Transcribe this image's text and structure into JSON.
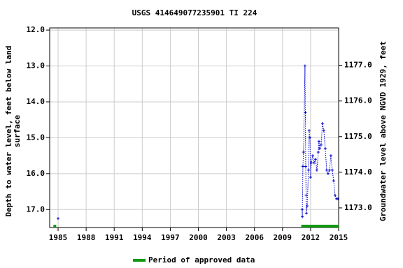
{
  "chart_data": {
    "type": "line",
    "title": "USGS 414649077235901 TI   224",
    "y_label_lines": [
      "Depth to water level, feet below land",
      "surface"
    ],
    "y2_label": "Groundwater level above NGVD 1929, feet",
    "xlim": [
      1984.1,
      2015
    ],
    "xticks": [
      1985,
      1988,
      1991,
      1994,
      1997,
      2000,
      2003,
      2006,
      2009,
      2012,
      2015
    ],
    "ylim": [
      11.94,
      17.5
    ],
    "y_inverted": true,
    "yticks": [
      {
        "value": 12,
        "label": "12.0"
      },
      {
        "value": 13,
        "label": "13.0"
      },
      {
        "value": 14,
        "label": "14.0"
      },
      {
        "value": 15,
        "label": "15.0"
      },
      {
        "value": 16,
        "label": "16.0"
      },
      {
        "value": 17,
        "label": "17.0"
      }
    ],
    "y2lim": [
      1172.45,
      1178.05
    ],
    "y2ticks": [
      {
        "value": 1173,
        "label": "1173.0"
      },
      {
        "value": 1174,
        "label": "1174.0"
      },
      {
        "value": 1175,
        "label": "1175.0"
      },
      {
        "value": 1176,
        "label": "1176.0"
      },
      {
        "value": 1177,
        "label": "1177.0"
      }
    ],
    "grid": true,
    "series": [
      {
        "color": "#0000cc",
        "x": [
          1985.0,
          null,
          2011.1,
          2011.12,
          2011.18,
          2011.25,
          2011.4,
          2011.44,
          2011.48,
          2011.52,
          2011.55,
          2011.63,
          2011.78,
          2011.85,
          2011.93,
          2012.0,
          2012.08,
          2012.23,
          2012.37,
          2012.52,
          2012.67,
          2012.82,
          2012.9,
          2012.97,
          2013.12,
          2013.27,
          2013.42,
          2013.57,
          2013.72,
          2013.87,
          2014.02,
          2014.17,
          2014.32,
          2014.47,
          2014.62,
          2014.77,
          2014.92
        ],
        "values": [
          17.25,
          null,
          17.0,
          17.2,
          15.8,
          15.4,
          13.0,
          14.3,
          15.8,
          16.6,
          17.1,
          16.9,
          15.9,
          14.8,
          15.0,
          16.1,
          15.7,
          15.5,
          15.7,
          15.6,
          15.9,
          15.4,
          15.1,
          15.3,
          15.2,
          14.6,
          14.8,
          15.3,
          15.9,
          16.0,
          15.9,
          15.5,
          15.9,
          16.2,
          16.6,
          16.7,
          16.7
        ]
      }
    ],
    "approved_color": "#119911",
    "approved_periods": [
      [
        1984.5,
        1984.8
      ],
      [
        2011.0,
        2015.0
      ]
    ],
    "legend": "Period of approved data"
  }
}
